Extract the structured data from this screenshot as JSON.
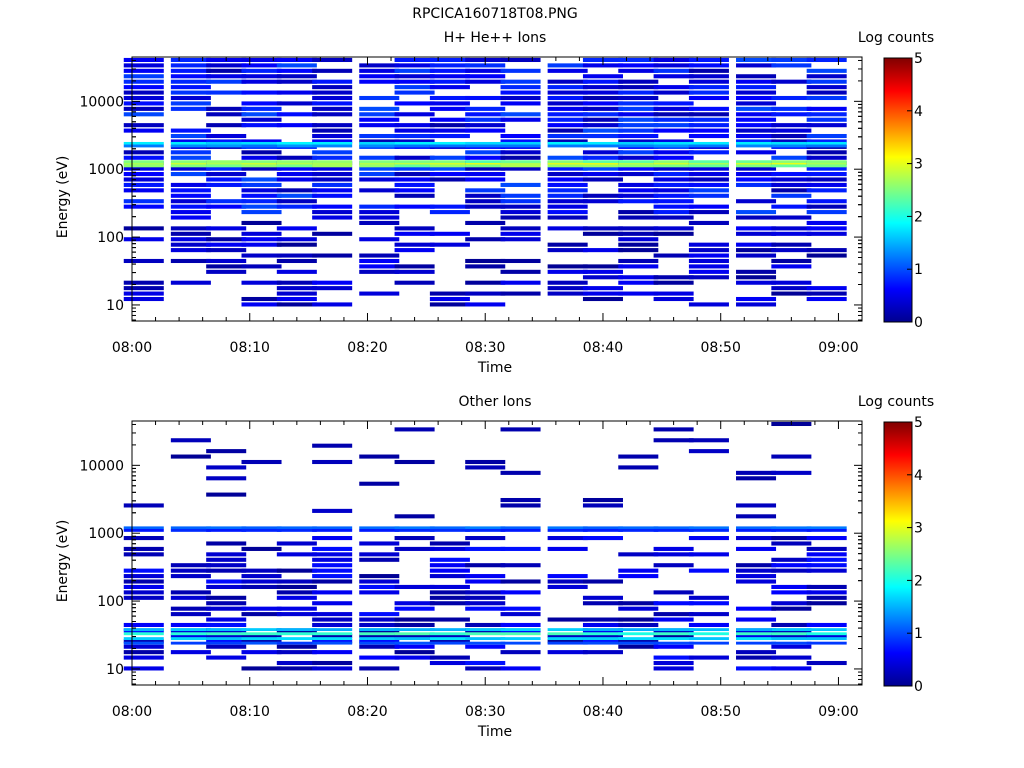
{
  "figure_title": "RPCICA160718T08.PNG",
  "chart_data": [
    {
      "type": "heatmap",
      "title": "H+ He++ Ions",
      "xlabel": "Time",
      "ylabel": "Energy (eV)",
      "x_ticks": [
        "08:00",
        "08:10",
        "08:20",
        "08:30",
        "08:40",
        "08:50",
        "09:00"
      ],
      "y_ticks": [
        "10",
        "100",
        "1000",
        "10000"
      ],
      "y_scale": "log",
      "ylim": [
        5.8,
        45000
      ],
      "xlim": [
        "08:00",
        "09:02"
      ],
      "time_bins": [
        "08:01",
        "08:05",
        "08:08",
        "08:11",
        "08:14",
        "08:17",
        "08:21",
        "08:24",
        "08:27",
        "08:30",
        "08:33",
        "08:37",
        "08:40",
        "08:43",
        "08:46",
        "08:49",
        "08:53",
        "08:56",
        "08:59"
      ],
      "colorbar": {
        "label": "Log counts",
        "range": [
          0,
          5
        ],
        "ticks": [
          "0",
          "1",
          "2",
          "3",
          "4",
          "5"
        ]
      },
      "bands": [
        {
          "energy_eV": 1200,
          "log_counts": 3.0
        },
        {
          "energy_eV": 1120,
          "log_counts": 2.6
        },
        {
          "energy_eV": 1290,
          "log_counts": 2.5
        },
        {
          "energy_eV": 2400,
          "log_counts": 1.8
        },
        {
          "energy_eV": 2200,
          "log_counts": 1.3
        }
      ],
      "background": {
        "energy_range_eV": [
          200,
          40000
        ],
        "log_counts_range": [
          0.2,
          1.0
        ],
        "fill_fraction": 0.72
      },
      "low_energy_background": {
        "energy_range_eV": [
          10,
          200
        ],
        "log_counts_range": [
          0.1,
          0.6
        ],
        "fill_fraction": 0.45
      }
    },
    {
      "type": "heatmap",
      "title": "Other Ions",
      "xlabel": "Time",
      "ylabel": "Energy (eV)",
      "x_ticks": [
        "08:00",
        "08:10",
        "08:20",
        "08:30",
        "08:40",
        "08:50",
        "09:00"
      ],
      "y_ticks": [
        "10",
        "100",
        "1000",
        "10000"
      ],
      "y_scale": "log",
      "ylim": [
        5.8,
        45000
      ],
      "xlim": [
        "08:00",
        "09:02"
      ],
      "time_bins": [
        "08:01",
        "08:05",
        "08:08",
        "08:11",
        "08:14",
        "08:17",
        "08:21",
        "08:24",
        "08:27",
        "08:30",
        "08:33",
        "08:37",
        "08:40",
        "08:43",
        "08:46",
        "08:49",
        "08:53",
        "08:56",
        "08:59"
      ],
      "colorbar": {
        "label": "Log counts",
        "range": [
          0,
          5
        ],
        "ticks": [
          "0",
          "1",
          "2",
          "3",
          "4",
          "5"
        ]
      },
      "bands": [
        {
          "energy_eV": 33,
          "log_counts": 2.2
        },
        {
          "energy_eV": 28,
          "log_counts": 1.7
        },
        {
          "energy_eV": 38,
          "log_counts": 1.6
        },
        {
          "energy_eV": 24,
          "log_counts": 1.0
        },
        {
          "energy_eV": 1200,
          "log_counts": 1.2
        },
        {
          "energy_eV": 1100,
          "log_counts": 0.8
        }
      ],
      "background": {
        "energy_range_eV": [
          1500,
          40000
        ],
        "log_counts_range": [
          0.1,
          0.4
        ],
        "fill_fraction": 0.12
      },
      "low_energy_background": {
        "energy_range_eV": [
          10,
          1000
        ],
        "log_counts_range": [
          0.1,
          0.7
        ],
        "fill_fraction": 0.5
      }
    }
  ]
}
